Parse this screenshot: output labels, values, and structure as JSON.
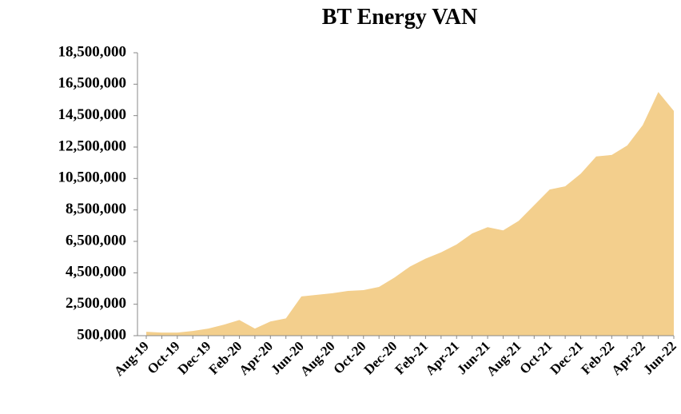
{
  "chart_data": {
    "type": "area",
    "title": "BT Energy VAN",
    "color": "#f3cf8d",
    "categories": [
      "Aug-19",
      null,
      "Oct-19",
      null,
      "Dec-19",
      null,
      "Feb-20",
      null,
      "Apr-20",
      null,
      "Jun-20",
      null,
      "Aug-20",
      null,
      "Oct-20",
      null,
      "Dec-20",
      null,
      "Feb-21",
      null,
      "Apr-21",
      null,
      "Jun-21",
      null,
      "Aug-21",
      null,
      "Oct-21",
      null,
      "Dec-21",
      null,
      "Feb-22",
      null,
      "Apr-22",
      null,
      "Jun-22"
    ],
    "values": [
      750000,
      700000,
      700000,
      800000,
      950000,
      1200000,
      1500000,
      950000,
      1400000,
      1600000,
      3000000,
      3100000,
      3200000,
      3350000,
      3400000,
      3600000,
      4200000,
      4900000,
      5400000,
      5800000,
      6300000,
      7000000,
      7400000,
      7200000,
      7800000,
      8800000,
      9800000,
      10000000,
      10800000,
      11900000,
      12000000,
      12600000,
      13900000,
      16000000,
      14800000
    ],
    "ylim": [
      500000,
      18500000
    ],
    "yticks": [
      {
        "value": 500000,
        "label": "500,000"
      },
      {
        "value": 2500000,
        "label": "2,500,000"
      },
      {
        "value": 4500000,
        "label": "4,500,000"
      },
      {
        "value": 6500000,
        "label": "6,500,000"
      },
      {
        "value": 8500000,
        "label": "8,500,000"
      },
      {
        "value": 10500000,
        "label": "10,500,000"
      },
      {
        "value": 12500000,
        "label": "12,500,000"
      },
      {
        "value": 14500000,
        "label": "14,500,000"
      },
      {
        "value": 16500000,
        "label": "16,500,000"
      },
      {
        "value": 18500000,
        "label": "18,500,000"
      }
    ],
    "grid": false
  }
}
